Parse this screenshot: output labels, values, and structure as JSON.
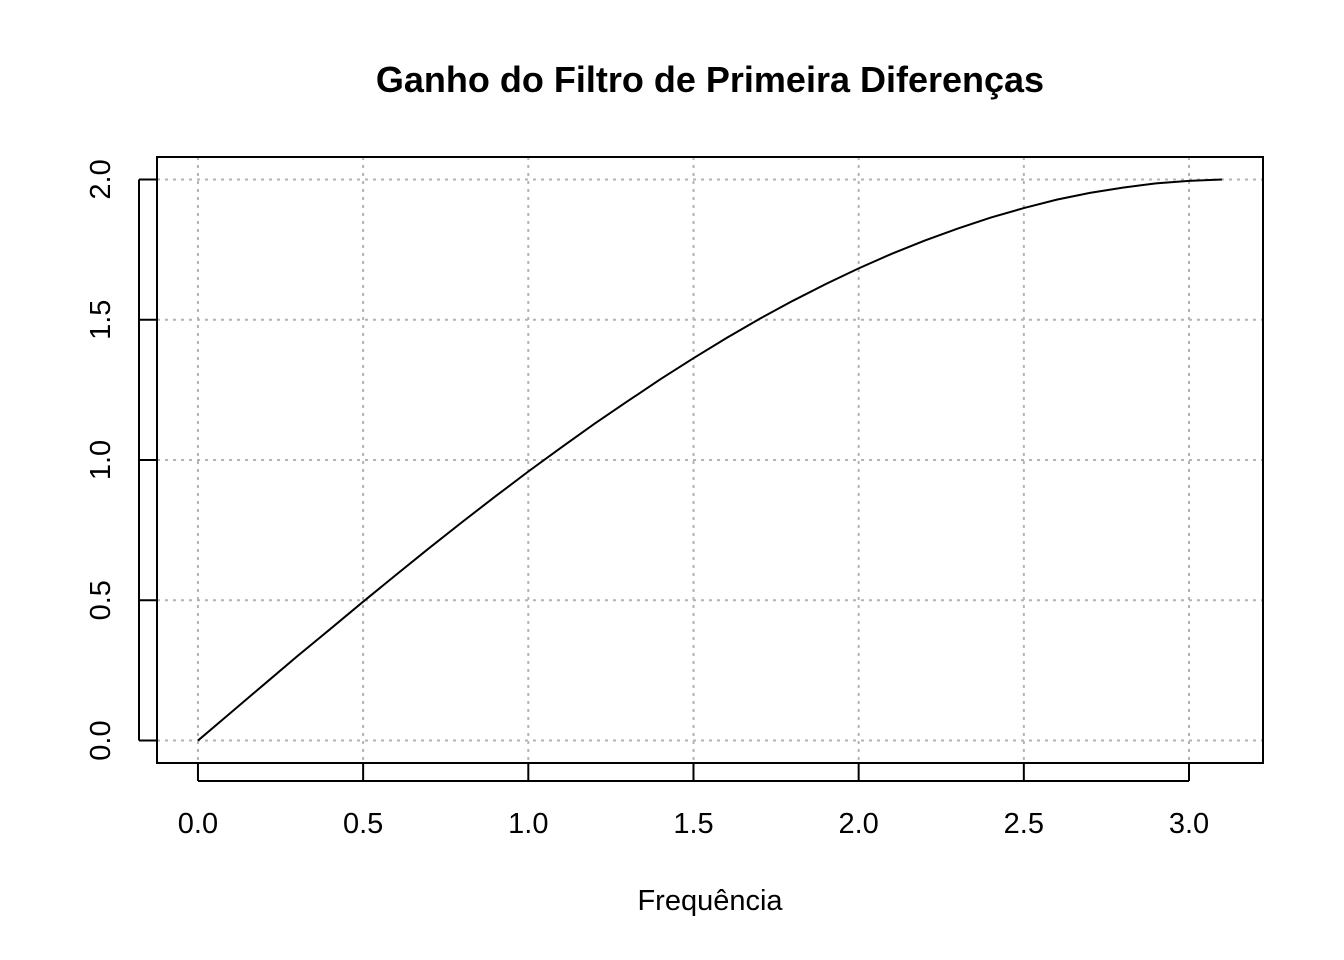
{
  "chart_data": {
    "type": "line",
    "title": "Ganho do Filtro de Primeira Diferenças",
    "xlabel": "Frequência",
    "ylabel": "",
    "xlim": [
      0.0,
      3.1
    ],
    "ylim": [
      0.0,
      2.0
    ],
    "xticks": [
      "0.0",
      "0.5",
      "1.0",
      "1.5",
      "2.0",
      "2.5",
      "3.0"
    ],
    "yticks": [
      "0.0",
      "0.5",
      "1.0",
      "1.5",
      "2.0"
    ],
    "grid": true,
    "series": [
      {
        "x": [
          0.0,
          0.1,
          0.2,
          0.3,
          0.4,
          0.5,
          0.6,
          0.7,
          0.8,
          0.9,
          1.0,
          1.1,
          1.2,
          1.3,
          1.4,
          1.5,
          1.6,
          1.7,
          1.8,
          1.9,
          2.0,
          2.1,
          2.2,
          2.3,
          2.4,
          2.5,
          2.6,
          2.7,
          2.8,
          2.9,
          3.0,
          3.1
        ],
        "y": [
          0.0,
          0.1,
          0.2,
          0.3,
          0.397,
          0.495,
          0.591,
          0.686,
          0.779,
          0.87,
          0.959,
          1.045,
          1.129,
          1.209,
          1.288,
          1.363,
          1.435,
          1.503,
          1.567,
          1.627,
          1.683,
          1.735,
          1.782,
          1.825,
          1.864,
          1.898,
          1.928,
          1.952,
          1.971,
          1.986,
          1.995,
          2.0
        ]
      }
    ]
  }
}
